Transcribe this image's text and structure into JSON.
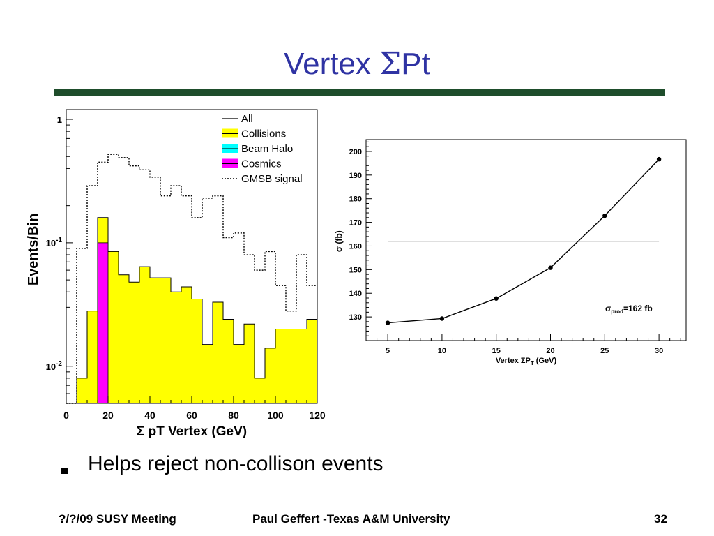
{
  "slide": {
    "title_prefix": "Vertex ",
    "title_symbol": "Σ",
    "title_suffix": "Pt",
    "bullet": "Helps reject non-collison events",
    "footer_left": "?/?/09 SUSY Meeting",
    "footer_center": "Paul Geffert -Texas A&M University",
    "footer_right": "32",
    "colors": {
      "title": "#2f33a3",
      "rule": "#1e4d2b"
    }
  },
  "chart_data": [
    {
      "type": "bar",
      "subtype": "stacked-histogram-log",
      "xlabel": "Σ pT Vertex (GeV)",
      "ylabel": "Events/Bin",
      "xlim": [
        0,
        120
      ],
      "ylim_log": [
        0.005,
        1.2
      ],
      "y_scale": "log",
      "x_ticks": [
        "0",
        "20",
        "40",
        "60",
        "80",
        "100",
        "120"
      ],
      "y_ticks": [
        {
          "value": 1,
          "label": "1"
        },
        {
          "value": 0.1,
          "label": "10-1"
        },
        {
          "value": 0.01,
          "label": "10-2"
        }
      ],
      "bin_width": 5,
      "legend": {
        "placement": "top-right",
        "entries": [
          {
            "label": "All",
            "style": "line",
            "color": "#000000"
          },
          {
            "label": "Collisions",
            "style": "fill",
            "color": "#ffff00"
          },
          {
            "label": "Beam Halo",
            "style": "fill",
            "color": "#00ffff"
          },
          {
            "label": "Cosmics",
            "style": "fill",
            "color": "#ff00ff"
          },
          {
            "label": "GMSB signal",
            "style": "dotted",
            "color": "#000000"
          }
        ]
      },
      "series": [
        {
          "name": "Collisions",
          "color": "#ffff00",
          "bin_edges": [
            0,
            5,
            10,
            15,
            20,
            25,
            30,
            35,
            40,
            45,
            50,
            55,
            60,
            65,
            70,
            75,
            80,
            85,
            90,
            95,
            100,
            105,
            110,
            115,
            120
          ],
          "values": [
            0.005,
            0.008,
            0.028,
            0.16,
            0.085,
            0.055,
            0.048,
            0.064,
            0.052,
            0.052,
            0.04,
            0.044,
            0.035,
            0.015,
            0.033,
            0.024,
            0.015,
            0.022,
            0.008,
            0.014,
            0.02,
            0.02,
            0.02,
            0.024
          ]
        },
        {
          "name": "Cosmics",
          "color": "#ff00ff",
          "bins": [
            {
              "x0": 15,
              "x1": 20,
              "value": 0.1
            }
          ]
        },
        {
          "name": "GMSB signal",
          "style": "dotted",
          "bin_edges": [
            0,
            5,
            10,
            15,
            20,
            25,
            30,
            35,
            40,
            45,
            50,
            55,
            60,
            65,
            70,
            75,
            80,
            85,
            90,
            95,
            100,
            105,
            110,
            115,
            120
          ],
          "values": [
            0.005,
            0.09,
            0.29,
            0.45,
            0.52,
            0.49,
            0.42,
            0.39,
            0.34,
            0.24,
            0.29,
            0.24,
            0.16,
            0.23,
            0.24,
            0.11,
            0.12,
            0.08,
            0.06,
            0.085,
            0.045,
            0.028,
            0.08,
            0.045
          ]
        }
      ]
    },
    {
      "type": "line",
      "xlabel": "Vertex ΣPT (GeV)",
      "ylabel": "σ (fb)",
      "xlim": [
        3,
        32.5
      ],
      "ylim": [
        120,
        205
      ],
      "x_ticks": [
        5,
        10,
        15,
        20,
        25,
        30
      ],
      "y_ticks": [
        130,
        140,
        150,
        160,
        170,
        180,
        190,
        200
      ],
      "series": [
        {
          "name": "",
          "x": [
            5,
            10,
            15,
            20,
            25,
            30
          ],
          "y": [
            127.5,
            129.3,
            137.8,
            150.8,
            172.8,
            196.7
          ]
        }
      ],
      "reference_line": {
        "y": 162,
        "x_range": [
          5,
          30
        ]
      },
      "annotation": "σprod=162 fb"
    }
  ]
}
